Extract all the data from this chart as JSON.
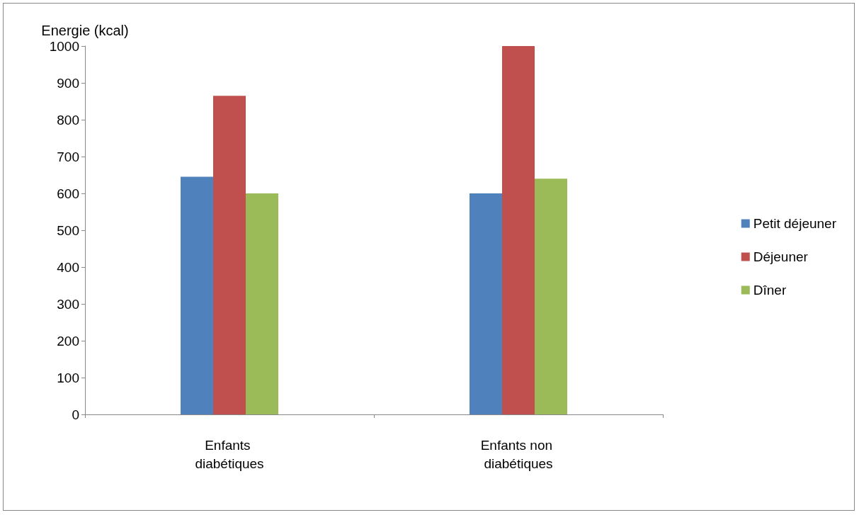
{
  "chart_data": {
    "type": "bar",
    "ylabel": "Energie (kcal)",
    "categories": [
      "Enfants diabétiques",
      "Enfants non diabétiques"
    ],
    "series": [
      {
        "name": "Petit déjeuner",
        "color": "#4f81bd",
        "values": [
          645,
          600
        ]
      },
      {
        "name": "Déjeuner",
        "color": "#c0504d",
        "values": [
          865,
          1000
        ]
      },
      {
        "name": "Dîner",
        "color": "#9bbb59",
        "values": [
          600,
          640
        ]
      }
    ],
    "ylim": [
      0,
      1000
    ],
    "yticks": [
      0,
      100,
      200,
      300,
      400,
      500,
      600,
      700,
      800,
      900,
      1000
    ],
    "grid": false,
    "legend": "right"
  }
}
